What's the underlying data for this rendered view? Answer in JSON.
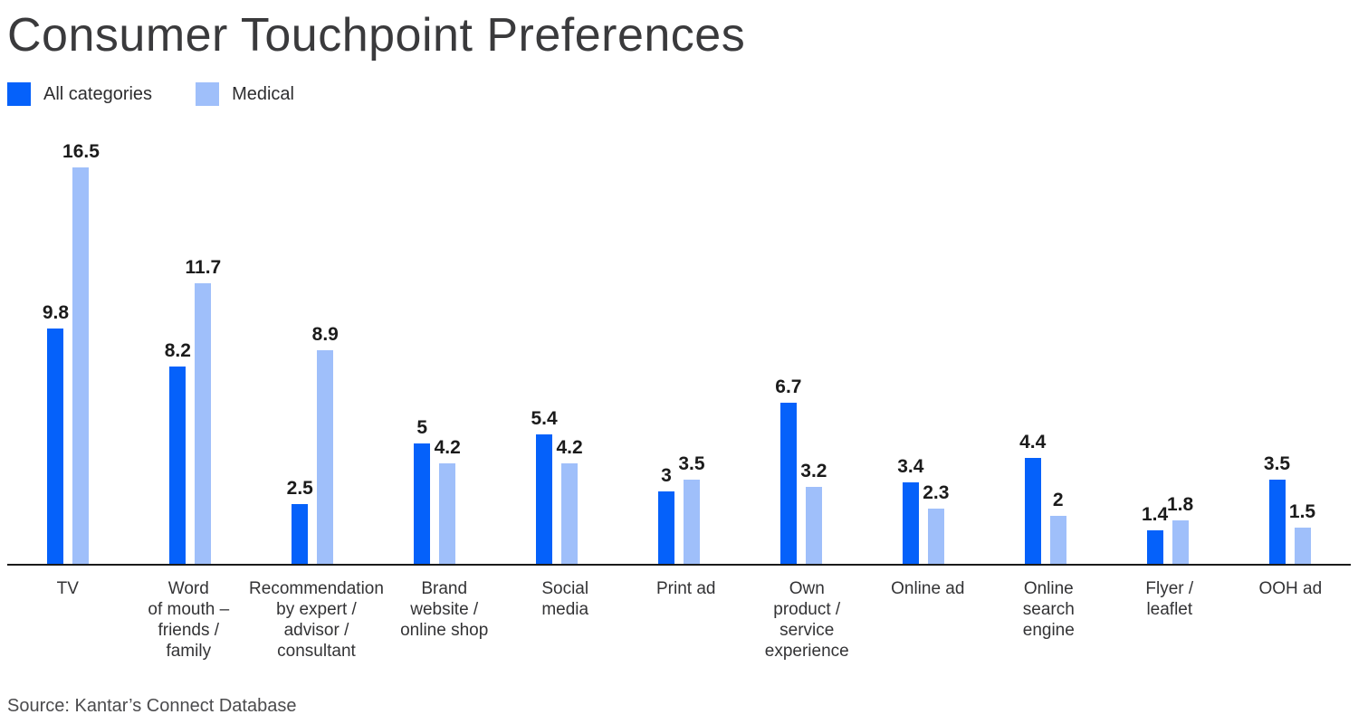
{
  "title": "Consumer Touchpoint Preferences",
  "legend": {
    "items": [
      {
        "label": "All categories",
        "color": "#0561fa"
      },
      {
        "label": "Medical",
        "color": "#9fbffa"
      }
    ]
  },
  "source": "Source: Kantar’s Connect Database",
  "chart_data": {
    "type": "bar",
    "title": "Consumer Touchpoint Preferences",
    "xlabel": "",
    "ylabel": "",
    "ylim": [
      0,
      17.9
    ],
    "grid": false,
    "legend_position": "top-left",
    "categories": [
      "TV",
      "Word\nof mouth –\nfriends /\nfamily",
      "Recommendation\nby expert /\nadvisor /\nconsultant",
      "Brand\nwebsite /\nonline shop",
      "Social\nmedia",
      "Print ad",
      "Own\nproduct /\nservice\nexperience",
      "Online ad",
      "Online\nsearch\nengine",
      "Flyer /\nleaflet",
      "OOH ad"
    ],
    "series": [
      {
        "name": "All categories",
        "color": "#0561fa",
        "values": [
          9.8,
          8.2,
          2.5,
          5,
          5.4,
          3,
          6.7,
          3.4,
          4.4,
          1.4,
          3.5
        ],
        "labels": [
          "9.8",
          "8.2",
          "2.5",
          "5",
          "5.4",
          "3",
          "6.7",
          "3.4",
          "4.4",
          "1.4",
          "3.5"
        ]
      },
      {
        "name": "Medical",
        "color": "#9fbffa",
        "values": [
          16.5,
          11.7,
          8.9,
          4.2,
          4.2,
          3.5,
          3.2,
          2.3,
          2,
          1.8,
          1.5
        ],
        "labels": [
          "16.5",
          "11.7",
          "8.9",
          "4.2",
          "4.2",
          "3.5",
          "3.2",
          "2.3",
          "2",
          "1.8",
          "1.5"
        ]
      }
    ]
  }
}
